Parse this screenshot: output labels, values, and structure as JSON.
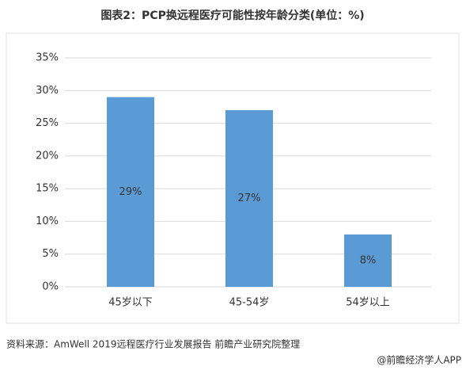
{
  "chart_data": {
    "type": "bar",
    "title": "图表2：PCP换远程医疗可能性按年龄分类(单位：%)",
    "categories": [
      "45岁以下",
      "45-54岁",
      "54岁以上"
    ],
    "values": [
      29,
      27,
      8
    ],
    "value_labels": [
      "29%",
      "27%",
      "8%"
    ],
    "color": "#5b9bd5",
    "ylim": [
      0,
      35
    ],
    "yticks": [
      {
        "value": 0,
        "label": "0%"
      },
      {
        "value": 5,
        "label": "5%"
      },
      {
        "value": 10,
        "label": "10%"
      },
      {
        "value": 15,
        "label": "15%"
      },
      {
        "value": 20,
        "label": "20%"
      },
      {
        "value": 25,
        "label": "25%"
      },
      {
        "value": 30,
        "label": "30%"
      },
      {
        "value": 35,
        "label": "35%"
      }
    ],
    "grid": true,
    "source": "资料来源：AmWell 2019远程医疗行业发展报告 前瞻产业研究院整理",
    "footer": "@前瞻经济学人APP"
  }
}
